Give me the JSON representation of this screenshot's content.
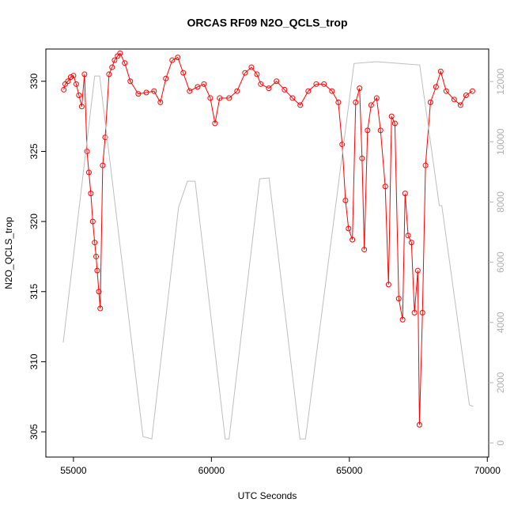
{
  "chart_data": {
    "type": "line",
    "title": "ORCAS RF09 N2O_QCLS_trop",
    "x_label": "UTC Seconds",
    "y_label": "N2O_QCLS_trop",
    "xlim": [
      54000,
      70050
    ],
    "xticks": [
      55000,
      60000,
      65000,
      70000
    ],
    "ylim": [
      303.2,
      332.3
    ],
    "yticks": [
      305,
      310,
      315,
      320,
      325,
      330
    ],
    "y2lim": [
      -470,
      13080
    ],
    "y2ticks": [
      0,
      2000,
      4000,
      6000,
      8000,
      10000,
      12000
    ],
    "series": [
      {
        "color": "#ff0000",
        "markers": true,
        "x": [
          54650,
          54700,
          54800,
          54900,
          55000,
          55100,
          55200,
          55300,
          55400,
          55490,
          55560,
          55630,
          55700,
          55770,
          55820,
          55860,
          55920,
          55970,
          56060,
          56150,
          56290,
          56400,
          56490,
          56600,
          56690,
          56860,
          57060,
          57350,
          57640,
          57920,
          58150,
          58350,
          58580,
          58780,
          58980,
          59210,
          59500,
          59730,
          59960,
          60130,
          60300,
          60640,
          60930,
          61220,
          61450,
          61650,
          61790,
          62080,
          62360,
          62650,
          62940,
          63220,
          63510,
          63800,
          64080,
          64370,
          64600,
          64740,
          64860,
          64970,
          65110,
          65230,
          65370,
          65460,
          65540,
          65660,
          65790,
          65990,
          66130,
          66300,
          66420,
          66530,
          66650,
          66790,
          66930,
          67020,
          67130,
          67250,
          67360,
          67480,
          67540,
          67650,
          67760,
          67940,
          68140,
          68310,
          68510,
          68800,
          69030,
          69230,
          69460
        ],
        "values": [
          329.4,
          329.8,
          330.0,
          330.3,
          330.4,
          329.8,
          329.0,
          328.2,
          330.5,
          325.0,
          323.5,
          322.0,
          320.0,
          318.5,
          317.5,
          316.5,
          315.0,
          313.8,
          324.0,
          326.0,
          330.5,
          331.0,
          331.5,
          331.8,
          332.0,
          331.3,
          330.0,
          329.1,
          329.2,
          329.3,
          328.5,
          330.2,
          331.5,
          331.7,
          330.6,
          329.3,
          329.6,
          329.8,
          328.8,
          327.0,
          328.8,
          328.8,
          329.3,
          330.6,
          331.0,
          330.5,
          329.8,
          329.5,
          330.0,
          329.4,
          328.8,
          328.3,
          329.3,
          329.8,
          329.8,
          329.3,
          328.5,
          325.5,
          321.5,
          319.5,
          318.7,
          328.5,
          329.5,
          324.5,
          318.0,
          326.5,
          328.3,
          328.8,
          326.5,
          322.5,
          315.5,
          327.5,
          327.0,
          314.5,
          313.0,
          322.0,
          319.0,
          318.5,
          313.5,
          316.5,
          305.5,
          313.5,
          324.0,
          328.5,
          329.6,
          330.7,
          329.3,
          328.7,
          328.3,
          329.0,
          329.3
        ]
      },
      {
        "color": "#bebebe",
        "axis": "y2",
        "x": [
          54630,
          55770,
          55950,
          57520,
          57840,
          58810,
          59130,
          59410,
          60500,
          60640,
          61750,
          62090,
          63210,
          63410,
          65170,
          65970,
          67550,
          68260,
          68350,
          69350,
          69490
        ],
        "values": [
          3335,
          12185,
          12185,
          210,
          130,
          7825,
          8690,
          8690,
          130,
          130,
          8770,
          8800,
          130,
          130,
          12600,
          12660,
          12550,
          7880,
          7880,
          1260,
          1210
        ]
      }
    ]
  }
}
